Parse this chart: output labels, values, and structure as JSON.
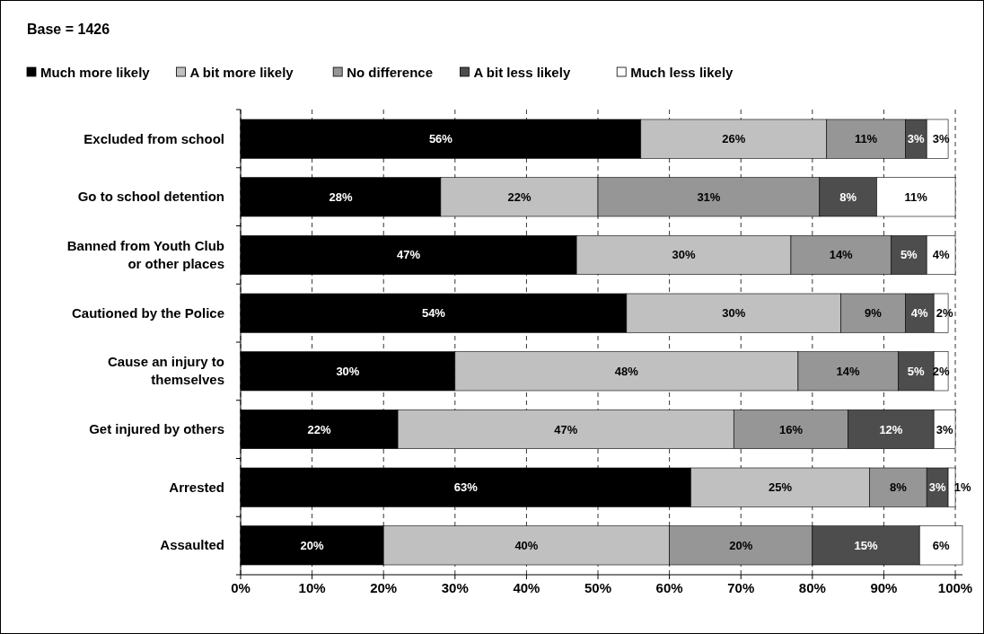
{
  "chart_data": {
    "type": "bar",
    "orientation": "horizontal",
    "stacked": true,
    "title": "Base = 1426",
    "categories": [
      "Excluded from school",
      "Go to school detention",
      "Banned from Youth Club or other places",
      "Cautioned by the Police",
      "Cause an injury to themselves",
      "Get injured by others",
      "Arrested",
      "Assaulted"
    ],
    "series": [
      {
        "name": "Much more likely",
        "color": "#000000",
        "values": [
          56,
          28,
          47,
          54,
          30,
          22,
          63,
          20
        ],
        "value_labels": [
          "56%",
          "28%",
          "47%",
          "54%",
          "30%",
          "22%",
          "63%",
          "20%"
        ]
      },
      {
        "name": "A bit more likely",
        "color": "#c0c0c0",
        "values": [
          26,
          22,
          30,
          30,
          48,
          47,
          25,
          40
        ],
        "value_labels": [
          "26%",
          "22%",
          "30%",
          "30%",
          "48%",
          "47%",
          "25%",
          "40%"
        ]
      },
      {
        "name": "No difference",
        "color": "#969696",
        "values": [
          11,
          31,
          14,
          9,
          14,
          16,
          8,
          20
        ],
        "value_labels": [
          "11%",
          "31%",
          "14%",
          "9%",
          "14%",
          "16%",
          "8%",
          "20%"
        ]
      },
      {
        "name": "A bit less likely",
        "color": "#4d4d4d",
        "values": [
          3,
          8,
          5,
          4,
          5,
          12,
          3,
          15
        ],
        "value_labels": [
          "3%",
          "8%",
          "5%",
          "4%",
          "5%",
          "12%",
          "3%",
          "15%"
        ]
      },
      {
        "name": "Much less likely",
        "color": "#ffffff",
        "values": [
          3,
          11,
          4,
          2,
          2,
          3,
          1,
          6
        ],
        "value_labels": [
          "3%",
          "11%",
          "4%",
          "2%",
          "2%",
          "3%",
          "1%",
          "6%"
        ]
      }
    ],
    "xlim": [
      0,
      101
    ],
    "xticks": [
      {
        "value": 0,
        "label": "0%"
      },
      {
        "value": 10,
        "label": "10%"
      },
      {
        "value": 20,
        "label": "20%"
      },
      {
        "value": 30,
        "label": "30%"
      },
      {
        "value": 40,
        "label": "40%"
      },
      {
        "value": 50,
        "label": "50%"
      },
      {
        "value": 60,
        "label": "60%"
      },
      {
        "value": 70,
        "label": "70%"
      },
      {
        "value": 80,
        "label": "80%"
      },
      {
        "value": 90,
        "label": "90%"
      },
      {
        "value": 100,
        "label": "100%"
      }
    ],
    "grid": "x",
    "legend": "top"
  }
}
